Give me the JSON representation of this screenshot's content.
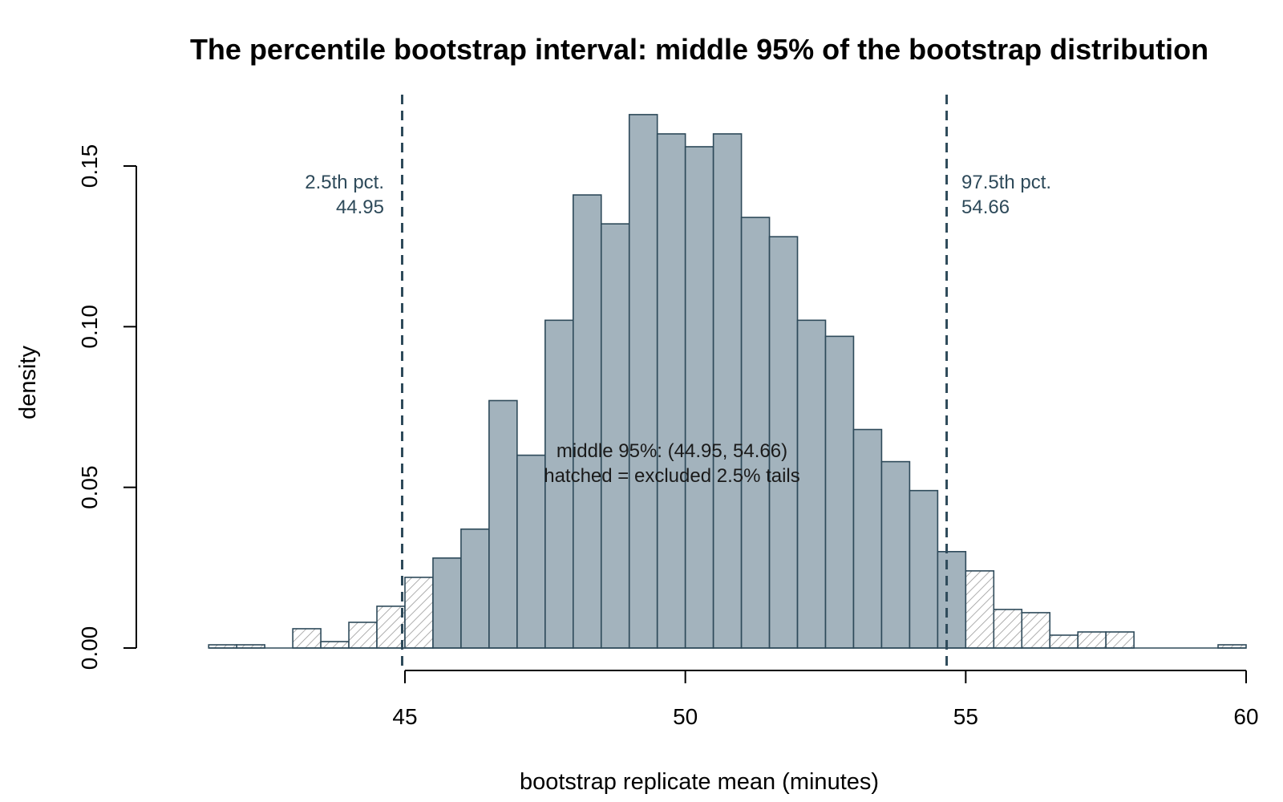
{
  "chart_data": {
    "type": "histogram",
    "title": "The percentile bootstrap interval: middle 95% of the bootstrap distribution",
    "xlabel": "bootstrap replicate mean (minutes)",
    "ylabel": "density",
    "xlim": [
      40.3,
      60.0
    ],
    "ylim": [
      0,
      0.17
    ],
    "x_ticks": [
      45,
      50,
      55,
      60
    ],
    "y_ticks": [
      0.0,
      0.05,
      0.1,
      0.15
    ],
    "x_tick_labels": [
      "45",
      "50",
      "55",
      "60"
    ],
    "y_tick_labels": [
      "0.00",
      "0.05",
      "0.10",
      "0.15"
    ],
    "bin_width": 0.5,
    "bins": [
      {
        "x0": 41.5,
        "x1": 42.0,
        "density": 0.001,
        "excluded": true
      },
      {
        "x0": 42.0,
        "x1": 42.5,
        "density": 0.001,
        "excluded": true
      },
      {
        "x0": 42.5,
        "x1": 43.0,
        "density": 0.0,
        "excluded": true
      },
      {
        "x0": 43.0,
        "x1": 43.5,
        "density": 0.006,
        "excluded": true
      },
      {
        "x0": 43.5,
        "x1": 44.0,
        "density": 0.002,
        "excluded": true
      },
      {
        "x0": 44.0,
        "x1": 44.5,
        "density": 0.008,
        "excluded": true
      },
      {
        "x0": 44.5,
        "x1": 45.0,
        "density": 0.013,
        "excluded": true
      },
      {
        "x0": 45.0,
        "x1": 45.5,
        "density": 0.022,
        "excluded": true
      },
      {
        "x0": 45.5,
        "x1": 46.0,
        "density": 0.028,
        "excluded": false
      },
      {
        "x0": 46.0,
        "x1": 46.5,
        "density": 0.037,
        "excluded": false
      },
      {
        "x0": 46.5,
        "x1": 47.0,
        "density": 0.077,
        "excluded": false
      },
      {
        "x0": 47.0,
        "x1": 47.5,
        "density": 0.06,
        "excluded": false
      },
      {
        "x0": 47.5,
        "x1": 48.0,
        "density": 0.102,
        "excluded": false
      },
      {
        "x0": 48.0,
        "x1": 48.5,
        "density": 0.141,
        "excluded": false
      },
      {
        "x0": 48.5,
        "x1": 49.0,
        "density": 0.132,
        "excluded": false
      },
      {
        "x0": 49.0,
        "x1": 49.5,
        "density": 0.166,
        "excluded": false
      },
      {
        "x0": 49.5,
        "x1": 50.0,
        "density": 0.16,
        "excluded": false
      },
      {
        "x0": 50.0,
        "x1": 50.5,
        "density": 0.156,
        "excluded": false
      },
      {
        "x0": 50.5,
        "x1": 51.0,
        "density": 0.16,
        "excluded": false
      },
      {
        "x0": 51.0,
        "x1": 51.5,
        "density": 0.134,
        "excluded": false
      },
      {
        "x0": 51.5,
        "x1": 52.0,
        "density": 0.128,
        "excluded": false
      },
      {
        "x0": 52.0,
        "x1": 52.5,
        "density": 0.102,
        "excluded": false
      },
      {
        "x0": 52.5,
        "x1": 53.0,
        "density": 0.097,
        "excluded": false
      },
      {
        "x0": 53.0,
        "x1": 53.5,
        "density": 0.068,
        "excluded": false
      },
      {
        "x0": 53.5,
        "x1": 54.0,
        "density": 0.058,
        "excluded": false
      },
      {
        "x0": 54.0,
        "x1": 54.5,
        "density": 0.049,
        "excluded": false
      },
      {
        "x0": 54.5,
        "x1": 55.0,
        "density": 0.03,
        "excluded": false
      },
      {
        "x0": 55.0,
        "x1": 55.5,
        "density": 0.024,
        "excluded": true
      },
      {
        "x0": 55.5,
        "x1": 56.0,
        "density": 0.012,
        "excluded": true
      },
      {
        "x0": 56.0,
        "x1": 56.5,
        "density": 0.011,
        "excluded": true
      },
      {
        "x0": 56.5,
        "x1": 57.0,
        "density": 0.004,
        "excluded": true
      },
      {
        "x0": 57.0,
        "x1": 57.5,
        "density": 0.005,
        "excluded": true
      },
      {
        "x0": 57.5,
        "x1": 58.0,
        "density": 0.005,
        "excluded": true
      },
      {
        "x0": 58.0,
        "x1": 58.5,
        "density": 0.0,
        "excluded": true
      },
      {
        "x0": 58.5,
        "x1": 59.0,
        "density": 0.0,
        "excluded": true
      },
      {
        "x0": 59.0,
        "x1": 59.5,
        "density": 0.0,
        "excluded": true
      },
      {
        "x0": 59.5,
        "x1": 60.0,
        "density": 0.001,
        "excluded": true
      }
    ],
    "reference_lines": [
      {
        "x": 44.95,
        "label_line1": "2.5th pct.",
        "label_line2": "44.95",
        "side": "left"
      },
      {
        "x": 54.66,
        "label_line1": "97.5th pct.",
        "label_line2": "54.66",
        "side": "right"
      }
    ],
    "annotation": {
      "line1": "middle 95%: (44.95, 54.66)",
      "line2": "hatched = excluded 2.5% tails"
    },
    "colors": {
      "bar_fill": "#a3b3bd",
      "bar_stroke": "#2e4a5a",
      "hatch_fill": "#ffffff",
      "hatch_line": "#9a9a9a",
      "reference_line": "#2e4a5a"
    },
    "grid": false
  }
}
